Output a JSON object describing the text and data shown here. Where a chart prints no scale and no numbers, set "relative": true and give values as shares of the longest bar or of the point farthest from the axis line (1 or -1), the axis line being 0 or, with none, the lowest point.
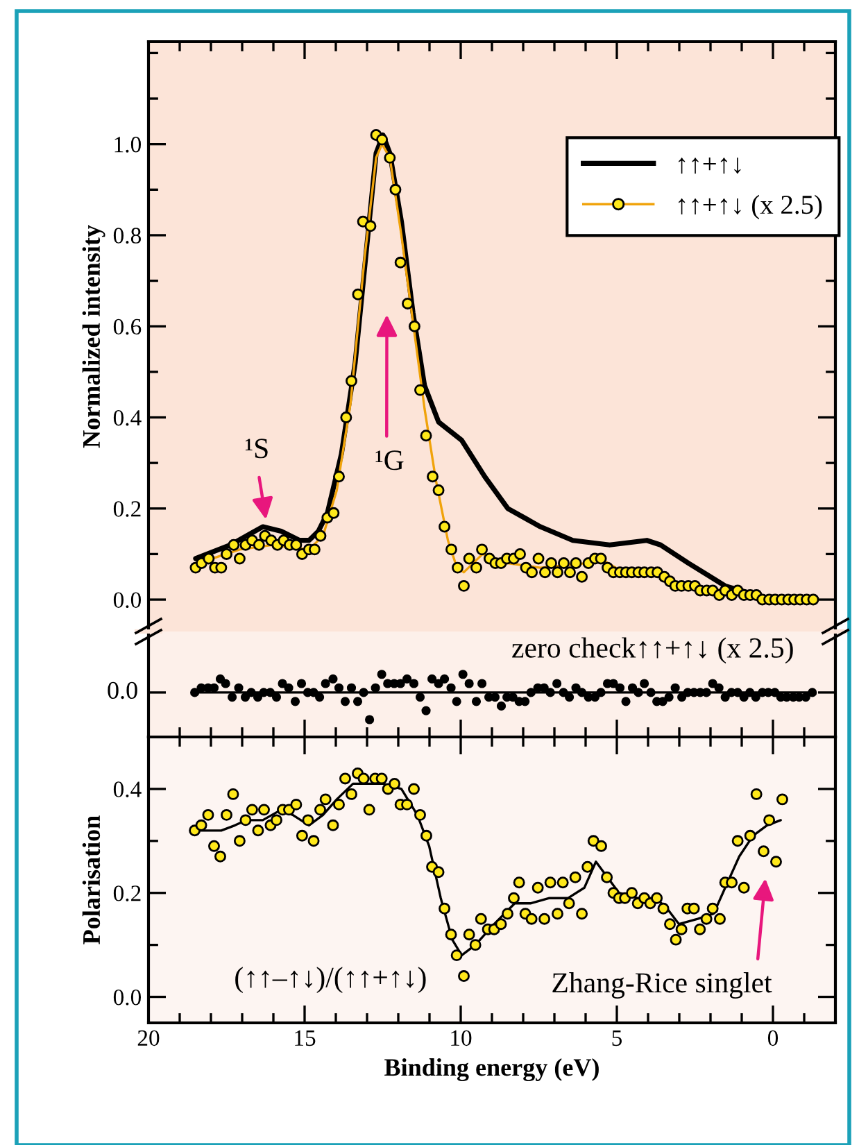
{
  "chart_data": [
    {
      "type": "line",
      "ylabel": "Normalized intensity",
      "xlim": [
        20,
        -2
      ],
      "ylim": [
        -0.07,
        1.225
      ],
      "tick_labels": "y",
      "legend": "top right",
      "xticks": [
        20,
        {
          "value": 19,
          "label": null
        },
        {
          "value": 18,
          "label": null
        },
        {
          "value": 17,
          "label": null
        },
        {
          "value": 16,
          "label": null
        },
        15,
        {
          "value": 14,
          "label": null
        },
        {
          "value": 13,
          "label": null
        },
        {
          "value": 12,
          "label": null
        },
        {
          "value": 11,
          "label": null
        },
        10,
        {
          "value": 9,
          "label": null
        },
        {
          "value": 8,
          "label": null
        },
        {
          "value": 7,
          "label": null
        },
        {
          "value": 6,
          "label": null
        },
        5,
        {
          "value": 4,
          "label": null
        },
        {
          "value": 3,
          "label": null
        },
        {
          "value": 2,
          "label": null
        },
        {
          "value": 1,
          "label": null
        },
        0,
        {
          "value": -1,
          "label": null
        }
      ],
      "yticks": [
        {
          "value": 0,
          "label": "0.0"
        },
        {
          "value": 0.1,
          "label": null
        },
        {
          "value": 0.2,
          "label": "0.2"
        },
        {
          "value": 0.3,
          "label": null
        },
        {
          "value": 0.4,
          "label": "0.4"
        },
        {
          "value": 0.5,
          "label": null
        },
        {
          "value": 0.6,
          "label": "0.6"
        },
        {
          "value": 0.7,
          "label": null
        },
        {
          "value": 0.8,
          "label": "0.8"
        },
        {
          "value": 0.9,
          "label": null
        },
        {
          "value": 1.0,
          "label": "1.0"
        },
        {
          "value": 1.1,
          "label": null
        },
        {
          "value": 1.2,
          "label": null
        }
      ],
      "annotations": [
        "¹S",
        "¹G"
      ],
      "series": [
        {
          "name": "↑↑+↑↓",
          "color": "#000000",
          "x": [
            18.49,
            17.38,
            16.34,
            15.75,
            15.16,
            14.86,
            14.56,
            14.27,
            13.82,
            13.38,
            12.93,
            12.71,
            12.49,
            12.27,
            11.9,
            11.53,
            11.16,
            10.71,
            9.97,
            9.23,
            8.49,
            7.45,
            6.41,
            5.23,
            4.04,
            3.6,
            2.71,
            1.53,
            0.04,
            -1.29
          ],
          "values": [
            0.09,
            0.12,
            0.16,
            0.15,
            0.13,
            0.13,
            0.15,
            0.19,
            0.32,
            0.52,
            0.83,
            0.98,
            1.02,
            0.98,
            0.83,
            0.63,
            0.47,
            0.39,
            0.35,
            0.27,
            0.2,
            0.16,
            0.13,
            0.12,
            0.13,
            0.12,
            0.08,
            0.03,
            0.0,
            0.0
          ]
        },
        {
          "name": "↑↑+↑↓ (x 2.5)",
          "color": "#f0a30a",
          "x": [
            18.41,
            17.08,
            16.04,
            14.86,
            14.41,
            13.97,
            13.53,
            13.08,
            12.71,
            12.52,
            12.27,
            11.9,
            11.53,
            11.16,
            10.79,
            10.41,
            10.12,
            9.9,
            9.3,
            8.49,
            7.45,
            5.97,
            5.53,
            4.79,
            3.6,
            3.01,
            1.53,
            0.04,
            -1.29
          ],
          "values": [
            0.08,
            0.11,
            0.12,
            0.11,
            0.14,
            0.24,
            0.43,
            0.75,
            0.97,
            1.0,
            0.97,
            0.8,
            0.61,
            0.42,
            0.26,
            0.13,
            0.07,
            0.06,
            0.1,
            0.08,
            0.07,
            0.08,
            0.09,
            0.06,
            0.05,
            0.03,
            0.02,
            0.0,
            0.0
          ]
        },
        {
          "type": "scatter",
          "marker": "circle",
          "color": "#ffe81a",
          "x": [
            18.49,
            18.3,
            18.07,
            17.87,
            17.67,
            17.5,
            17.27,
            17.08,
            16.89,
            16.68,
            16.46,
            16.27,
            16.07,
            15.87,
            15.67,
            15.48,
            15.27,
            15.08,
            14.86,
            14.68,
            14.49,
            14.27,
            14.07,
            13.9,
            13.67,
            13.5,
            13.29,
            13.13,
            12.89,
            12.71,
            12.52,
            12.27,
            12.09,
            11.93,
            11.7,
            11.48,
            11.3,
            11.11,
            10.9,
            10.71,
            10.52,
            10.3,
            10.1,
            9.9,
            9.73,
            9.5,
            9.32,
            9.08,
            8.89,
            8.71,
            8.52,
            8.3,
            8.1,
            7.91,
            7.72,
            7.51,
            7.3,
            7.1,
            6.9,
            6.7,
            6.5,
            6.31,
            6.12,
            5.91,
            5.7,
            5.51,
            5.3,
            5.11,
            4.9,
            4.71,
            4.52,
            4.31,
            4.12,
            3.9,
            3.7,
            3.48,
            3.3,
            3.13,
            2.93,
            2.71,
            2.5,
            2.33,
            2.12,
            1.93,
            1.72,
            1.53,
            1.32,
            1.13,
            0.93,
            0.73,
            0.53,
            0.34,
            0.12,
            -0.07,
            -0.28,
            -0.49,
            -0.68,
            -0.87,
            -1.08,
            -1.29
          ],
          "values": [
            0.07,
            0.08,
            0.09,
            0.07,
            0.07,
            0.1,
            0.12,
            0.09,
            0.12,
            0.13,
            0.12,
            0.14,
            0.13,
            0.12,
            0.13,
            0.12,
            0.12,
            0.1,
            0.11,
            0.11,
            0.14,
            0.18,
            0.19,
            0.27,
            0.4,
            0.48,
            0.67,
            0.83,
            0.82,
            1.02,
            1.01,
            0.97,
            0.9,
            0.74,
            0.65,
            0.6,
            0.46,
            0.36,
            0.27,
            0.24,
            0.16,
            0.11,
            0.07,
            0.03,
            0.09,
            0.07,
            0.11,
            0.09,
            0.08,
            0.08,
            0.09,
            0.09,
            0.1,
            0.07,
            0.06,
            0.09,
            0.06,
            0.08,
            0.06,
            0.08,
            0.06,
            0.08,
            0.05,
            0.08,
            0.09,
            0.09,
            0.07,
            0.06,
            0.06,
            0.06,
            0.06,
            0.06,
            0.06,
            0.06,
            0.06,
            0.05,
            0.04,
            0.03,
            0.03,
            0.03,
            0.03,
            0.02,
            0.02,
            0.02,
            0.01,
            0.02,
            0.01,
            0.02,
            0.01,
            0.01,
            0.01,
            0.0,
            0.0,
            0.0,
            0.0,
            0.0,
            0.0,
            0.0,
            0.0,
            0.0
          ]
        }
      ]
    },
    {
      "type": "scatter",
      "xlim": [
        20,
        -2
      ],
      "relative": true,
      "tick_labels": false,
      "xticks": [
        20,
        {
          "value": 19,
          "label": null
        },
        {
          "value": 18,
          "label": null
        },
        {
          "value": 17,
          "label": null
        },
        {
          "value": 16,
          "label": null
        },
        15,
        {
          "value": 14,
          "label": null
        },
        {
          "value": 13,
          "label": null
        },
        {
          "value": 12,
          "label": null
        },
        {
          "value": 11,
          "label": null
        },
        10,
        {
          "value": 9,
          "label": null
        },
        {
          "value": 8,
          "label": null
        },
        {
          "value": 7,
          "label": null
        },
        {
          "value": 6,
          "label": null
        },
        5,
        {
          "value": 4,
          "label": null
        },
        {
          "value": 3,
          "label": null
        },
        {
          "value": 2,
          "label": null
        },
        {
          "value": 1,
          "label": null
        },
        0,
        {
          "value": -1,
          "label": null
        }
      ],
      "annotations": [
        "0.0",
        "zero check↑↑+↑↓ (x 2.5)"
      ],
      "series": [
        {
          "type": "line",
          "color": "#000000",
          "x": [
            18.52,
            -1.26
          ],
          "values": [
            0.0,
            0.0
          ]
        },
        {
          "marker": "circle",
          "color": "#000000",
          "x": [
            18.52,
            18.31,
            18.09,
            17.9,
            17.7,
            17.53,
            17.32,
            17.11,
            16.9,
            16.71,
            16.5,
            16.31,
            16.1,
            15.9,
            15.71,
            15.51,
            15.3,
            15.1,
            14.9,
            14.71,
            14.52,
            14.33,
            14.09,
            13.9,
            13.7,
            13.5,
            13.3,
            13.11,
            12.92,
            12.73,
            12.53,
            12.34,
            12.13,
            11.93,
            11.72,
            11.5,
            11.3,
            11.11,
            10.92,
            10.71,
            10.52,
            10.31,
            10.13,
            9.93,
            9.73,
            9.5,
            9.32,
            9.1,
            8.9,
            8.7,
            8.52,
            8.33,
            8.13,
            7.94,
            7.75,
            7.53,
            7.33,
            7.13,
            6.92,
            6.71,
            6.52,
            6.31,
            6.12,
            5.91,
            5.7,
            5.51,
            5.3,
            5.11,
            4.9,
            4.71,
            4.5,
            4.31,
            4.12,
            3.91,
            3.72,
            3.53,
            3.33,
            3.13,
            2.92,
            2.73,
            2.53,
            2.33,
            2.13,
            1.93,
            1.73,
            1.53,
            1.33,
            1.13,
            0.93,
            0.74,
            0.55,
            0.34,
            0.15,
            -0.06,
            -0.25,
            -0.44,
            -0.65,
            -0.84,
            -1.05,
            -1.26
          ],
          "values": [
            0.0,
            0.17,
            0.17,
            0.17,
            0.5,
            0.33,
            -0.17,
            0.17,
            -0.17,
            0.0,
            -0.17,
            0.0,
            0.0,
            -0.17,
            0.33,
            0.17,
            -0.33,
            0.33,
            0.0,
            0.0,
            -0.17,
            0.33,
            0.5,
            0.17,
            -0.33,
            0.17,
            -0.33,
            0.0,
            -1.0,
            0.17,
            0.67,
            0.33,
            0.33,
            0.33,
            0.5,
            0.33,
            -0.17,
            -0.67,
            0.5,
            0.33,
            0.5,
            0.17,
            -0.33,
            0.67,
            0.33,
            -0.33,
            0.33,
            -0.17,
            -0.17,
            -0.5,
            -0.17,
            -0.17,
            -0.33,
            -0.33,
            0.0,
            0.17,
            0.17,
            0.0,
            0.33,
            0.0,
            -0.17,
            0.17,
            0.0,
            -0.17,
            -0.17,
            0.0,
            0.33,
            0.33,
            0.17,
            -0.33,
            0.17,
            0.0,
            0.33,
            0.0,
            -0.33,
            -0.33,
            -0.17,
            0.17,
            -0.17,
            0.0,
            0.0,
            0.0,
            0.0,
            0.33,
            0.17,
            -0.17,
            0.0,
            0.0,
            -0.17,
            0.0,
            -0.17,
            0.0,
            0.0,
            0.0,
            -0.17,
            -0.17,
            -0.17,
            -0.17,
            -0.17,
            0.0
          ]
        }
      ]
    },
    {
      "type": "scatter",
      "xlabel": "Binding energy (eV)",
      "ylabel": "Polarisation",
      "xlim": [
        20,
        -2
      ],
      "ylim": [
        -0.05,
        0.5
      ],
      "xticks": [
        20,
        {
          "value": 19,
          "label": null
        },
        {
          "value": 18,
          "label": null
        },
        {
          "value": 17,
          "label": null
        },
        {
          "value": 16,
          "label": null
        },
        15,
        {
          "value": 14,
          "label": null
        },
        {
          "value": 13,
          "label": null
        },
        {
          "value": 12,
          "label": null
        },
        {
          "value": 11,
          "label": null
        },
        10,
        {
          "value": 9,
          "label": null
        },
        {
          "value": 8,
          "label": null
        },
        {
          "value": 7,
          "label": null
        },
        {
          "value": 6,
          "label": null
        },
        5,
        {
          "value": 4,
          "label": null
        },
        {
          "value": 3,
          "label": null
        },
        {
          "value": 2,
          "label": null
        },
        {
          "value": 1,
          "label": null
        },
        0,
        {
          "value": -1,
          "label": null
        }
      ],
      "yticks": [
        {
          "value": 0,
          "label": "0.0"
        },
        {
          "value": 0.1,
          "label": null
        },
        {
          "value": 0.2,
          "label": "0.2"
        },
        {
          "value": 0.3,
          "label": null
        },
        {
          "value": 0.4,
          "label": "0.4"
        }
      ],
      "annotations": [
        "(↑↑–↑↓)/(↑↑+↑↓)",
        "Zhang-Rice singlet"
      ],
      "series": [
        {
          "type": "line",
          "color": "#000000",
          "x": [
            18.34,
            17.67,
            17.23,
            16.86,
            16.34,
            15.75,
            15.38,
            14.86,
            14.41,
            13.97,
            13.45,
            12.49,
            11.9,
            11.39,
            11.01,
            10.64,
            10.27,
            9.97,
            9.53,
            8.93,
            8.27,
            7.75,
            7.16,
            6.56,
            6.04,
            5.67,
            5.3,
            4.93,
            4.34,
            3.75,
            3.39,
            3.01,
            2.41,
            1.9,
            1.53,
            1.08,
            0.64,
            0.19,
            -0.25
          ],
          "values": [
            0.32,
            0.32,
            0.33,
            0.34,
            0.34,
            0.36,
            0.35,
            0.33,
            0.35,
            0.38,
            0.41,
            0.41,
            0.4,
            0.35,
            0.29,
            0.19,
            0.11,
            0.08,
            0.1,
            0.14,
            0.18,
            0.18,
            0.19,
            0.19,
            0.21,
            0.26,
            0.23,
            0.2,
            0.19,
            0.19,
            0.17,
            0.14,
            0.15,
            0.16,
            0.21,
            0.27,
            0.31,
            0.33,
            0.34
          ]
        },
        {
          "marker": "circle",
          "color": "#ffe81a",
          "x": [
            18.52,
            18.31,
            18.09,
            17.9,
            17.7,
            17.5,
            17.29,
            17.08,
            16.89,
            16.68,
            16.49,
            16.3,
            16.09,
            15.9,
            15.7,
            15.5,
            15.27,
            15.08,
            14.89,
            14.71,
            14.5,
            14.33,
            14.09,
            13.9,
            13.7,
            13.5,
            13.3,
            13.11,
            12.93,
            12.74,
            12.53,
            12.33,
            12.12,
            11.93,
            11.72,
            11.5,
            11.3,
            11.1,
            10.92,
            10.71,
            10.52,
            10.31,
            10.13,
            9.9,
            9.73,
            9.53,
            9.35,
            9.13,
            8.93,
            8.71,
            8.5,
            8.3,
            8.13,
            7.93,
            7.73,
            7.53,
            7.32,
            7.13,
            6.9,
            6.73,
            6.53,
            6.33,
            6.12,
            5.94,
            5.75,
            5.5,
            5.32,
            5.11,
            4.93,
            4.74,
            4.52,
            4.33,
            4.12,
            3.93,
            3.72,
            3.51,
            3.3,
            3.11,
            2.93,
            2.74,
            2.53,
            2.34,
            2.13,
            1.93,
            1.7,
            1.53,
            1.32,
            1.13,
            0.93,
            0.73,
            0.53,
            0.3,
            0.12,
            -0.1,
            -0.3
          ],
          "values": [
            0.32,
            0.33,
            0.35,
            0.29,
            0.27,
            0.35,
            0.39,
            0.3,
            0.34,
            0.36,
            0.32,
            0.36,
            0.33,
            0.34,
            0.36,
            0.36,
            0.37,
            0.31,
            0.34,
            0.3,
            0.36,
            0.38,
            0.33,
            0.37,
            0.42,
            0.39,
            0.43,
            0.42,
            0.36,
            0.42,
            0.42,
            0.4,
            0.41,
            0.37,
            0.37,
            0.4,
            0.35,
            0.31,
            0.25,
            0.24,
            0.17,
            0.12,
            0.08,
            0.04,
            0.12,
            0.1,
            0.15,
            0.13,
            0.13,
            0.14,
            0.16,
            0.19,
            0.22,
            0.16,
            0.15,
            0.21,
            0.15,
            0.22,
            0.16,
            0.22,
            0.18,
            0.23,
            0.16,
            0.25,
            0.3,
            0.29,
            0.23,
            0.2,
            0.19,
            0.19,
            0.2,
            0.18,
            0.19,
            0.18,
            0.19,
            0.17,
            0.14,
            0.11,
            0.13,
            0.17,
            0.17,
            0.13,
            0.15,
            0.17,
            0.15,
            0.22,
            0.22,
            0.3,
            0.21,
            0.31,
            0.39,
            0.28,
            0.34,
            0.26,
            0.38
          ]
        }
      ]
    }
  ]
}
